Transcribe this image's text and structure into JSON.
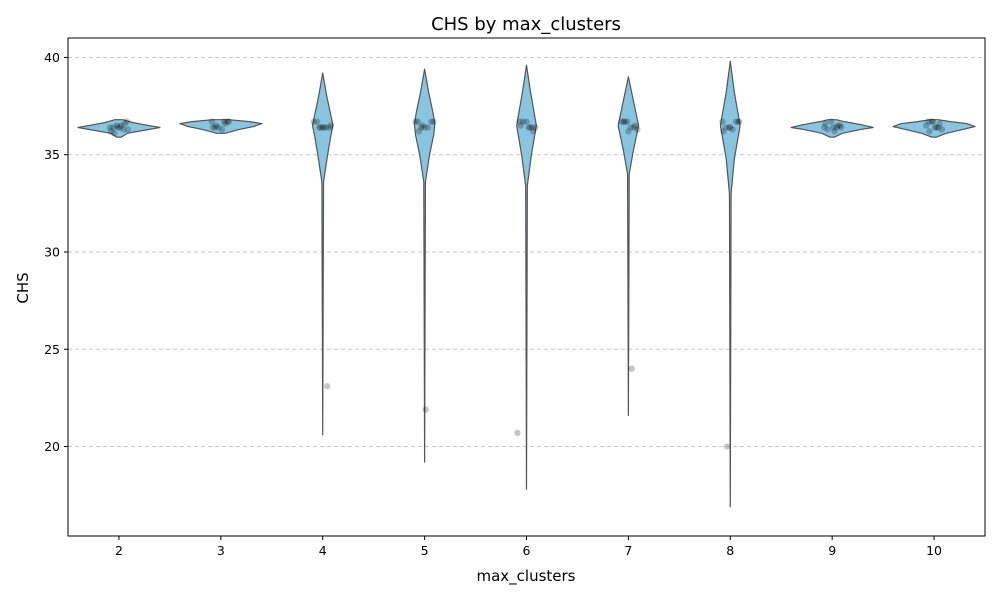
{
  "chart_data": {
    "type": "violin",
    "title": "CHS by max_clusters",
    "xlabel": "max_clusters",
    "ylabel": "CHS",
    "categories": [
      "2",
      "3",
      "4",
      "5",
      "6",
      "7",
      "8",
      "9",
      "10"
    ],
    "ylim": [
      15.4,
      41.0
    ],
    "yticks": [
      20,
      25,
      30,
      35,
      40
    ],
    "grid": "y-dashed",
    "violin_color": "#87c5e0",
    "violin_edge_color": "#555555",
    "point_color": "#000000",
    "violins": [
      {
        "category": "2",
        "min": 35.9,
        "max": 36.8,
        "width_profile": [
          [
            35.9,
            0.05
          ],
          [
            36.1,
            0.2
          ],
          [
            36.25,
            0.6
          ],
          [
            36.4,
            1.0
          ],
          [
            36.55,
            0.6
          ],
          [
            36.65,
            0.35
          ],
          [
            36.8,
            0.1
          ]
        ]
      },
      {
        "category": "3",
        "min": 36.1,
        "max": 36.8,
        "width_profile": [
          [
            36.1,
            0.1
          ],
          [
            36.3,
            0.45
          ],
          [
            36.45,
            0.8
          ],
          [
            36.6,
            1.0
          ],
          [
            36.7,
            0.7
          ],
          [
            36.8,
            0.2
          ]
        ]
      },
      {
        "category": "4",
        "min": 20.6,
        "max": 39.2,
        "width_profile": [
          [
            20.6,
            0.0
          ],
          [
            33.6,
            0.02
          ],
          [
            35.0,
            0.12
          ],
          [
            36.0,
            0.2
          ],
          [
            36.5,
            0.25
          ],
          [
            37.0,
            0.2
          ],
          [
            38.0,
            0.1
          ],
          [
            39.2,
            0.0
          ]
        ]
      },
      {
        "category": "5",
        "min": 19.2,
        "max": 39.4,
        "width_profile": [
          [
            19.2,
            0.0
          ],
          [
            33.6,
            0.02
          ],
          [
            35.0,
            0.12
          ],
          [
            36.0,
            0.22
          ],
          [
            36.6,
            0.25
          ],
          [
            37.2,
            0.2
          ],
          [
            38.2,
            0.1
          ],
          [
            39.4,
            0.0
          ]
        ]
      },
      {
        "category": "6",
        "min": 17.8,
        "max": 39.6,
        "width_profile": [
          [
            17.8,
            0.0
          ],
          [
            33.4,
            0.02
          ],
          [
            35.0,
            0.12
          ],
          [
            36.0,
            0.2
          ],
          [
            36.5,
            0.24
          ],
          [
            37.0,
            0.2
          ],
          [
            38.2,
            0.1
          ],
          [
            39.6,
            0.0
          ]
        ]
      },
      {
        "category": "7",
        "min": 21.6,
        "max": 39.0,
        "width_profile": [
          [
            21.6,
            0.0
          ],
          [
            34.0,
            0.02
          ],
          [
            35.2,
            0.12
          ],
          [
            36.0,
            0.2
          ],
          [
            36.5,
            0.25
          ],
          [
            37.0,
            0.2
          ],
          [
            38.0,
            0.1
          ],
          [
            39.0,
            0.0
          ]
        ]
      },
      {
        "category": "8",
        "min": 16.9,
        "max": 39.8,
        "width_profile": [
          [
            16.9,
            0.0
          ],
          [
            33.0,
            0.02
          ],
          [
            34.8,
            0.1
          ],
          [
            36.0,
            0.2
          ],
          [
            36.5,
            0.24
          ],
          [
            37.0,
            0.2
          ],
          [
            38.2,
            0.1
          ],
          [
            39.8,
            0.0
          ]
        ]
      },
      {
        "category": "9",
        "min": 35.9,
        "max": 36.8,
        "width_profile": [
          [
            35.9,
            0.05
          ],
          [
            36.1,
            0.25
          ],
          [
            36.3,
            0.7
          ],
          [
            36.4,
            1.0
          ],
          [
            36.55,
            0.7
          ],
          [
            36.7,
            0.3
          ],
          [
            36.8,
            0.1
          ]
        ]
      },
      {
        "category": "10",
        "min": 35.9,
        "max": 36.8,
        "width_profile": [
          [
            35.9,
            0.05
          ],
          [
            36.1,
            0.3
          ],
          [
            36.3,
            0.7
          ],
          [
            36.45,
            1.0
          ],
          [
            36.6,
            0.8
          ],
          [
            36.7,
            0.4
          ],
          [
            36.8,
            0.1
          ]
        ]
      }
    ],
    "points": [
      {
        "category": "2",
        "values": [
          36.4,
          36.4,
          36.5,
          36.4,
          36.3,
          36.7,
          36.2,
          36.1,
          36.4,
          36.5,
          36.6,
          36.3
        ]
      },
      {
        "category": "3",
        "values": [
          36.7,
          36.7,
          36.7,
          36.4,
          36.4,
          36.3,
          36.6,
          36.7,
          36.4,
          36.5
        ]
      },
      {
        "category": "4",
        "values": [
          36.4,
          36.4,
          36.4,
          36.4,
          36.7,
          36.7,
          36.4,
          36.4,
          23.1,
          36.5
        ]
      },
      {
        "category": "5",
        "values": [
          36.7,
          36.7,
          36.4,
          36.4,
          36.4,
          36.7,
          36.7,
          36.2,
          36.5,
          21.9
        ]
      },
      {
        "category": "6",
        "values": [
          36.4,
          36.4,
          36.4,
          36.7,
          36.7,
          36.7,
          36.4,
          36.2,
          20.7,
          36.5
        ]
      },
      {
        "category": "7",
        "values": [
          36.7,
          36.7,
          36.4,
          36.4,
          36.3,
          36.7,
          36.7,
          36.2,
          24.0,
          36.5
        ]
      },
      {
        "category": "8",
        "values": [
          36.7,
          36.7,
          36.4,
          36.4,
          36.3,
          36.7,
          36.7,
          36.2,
          20.0,
          36.4
        ]
      },
      {
        "category": "9",
        "values": [
          36.4,
          36.4,
          36.5,
          36.4,
          36.3,
          36.7,
          36.2,
          36.5,
          36.4,
          36.6
        ]
      },
      {
        "category": "10",
        "values": [
          36.7,
          36.7,
          36.4,
          36.4,
          36.3,
          36.5,
          36.2,
          36.7,
          36.4,
          36.6
        ]
      }
    ]
  }
}
